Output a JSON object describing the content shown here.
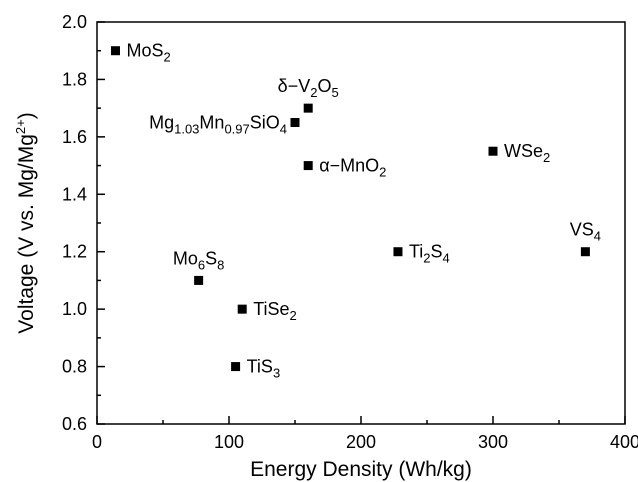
{
  "chart_data": {
    "type": "scatter",
    "xlabel": "Energy Density (Wh/kg)",
    "ylabel_parts": [
      {
        "t": "Voltage (V vs. Mg/Mg"
      },
      {
        "t": "2+",
        "s": "sup"
      },
      {
        "t": ")"
      }
    ],
    "xlim": [
      0,
      400
    ],
    "ylim": [
      0.6,
      2.0
    ],
    "xticks": [
      0,
      100,
      200,
      300,
      400
    ],
    "xticks_minor": [
      50,
      150,
      250,
      350
    ],
    "yticks": [
      0.6,
      0.8,
      1.0,
      1.2,
      1.4,
      1.6,
      1.8,
      2.0
    ],
    "yticks_minor": [
      0.7,
      0.9,
      1.1,
      1.3,
      1.5,
      1.7,
      1.9
    ],
    "xtick_labels": [
      "0",
      "100",
      "200",
      "300",
      "400"
    ],
    "ytick_labels": [
      "0.6",
      "0.8",
      "1.0",
      "1.2",
      "1.4",
      "1.6",
      "1.8",
      "2.0"
    ],
    "grid": false,
    "legend": "none",
    "marker": "square",
    "marker_color": "#000000",
    "points": [
      {
        "name": "MoS2",
        "x": 14,
        "y": 1.9,
        "label": [
          {
            "t": "MoS"
          },
          {
            "t": "2",
            "s": "sub"
          }
        ],
        "pos": "right"
      },
      {
        "name": "delta-V2O5",
        "x": 160,
        "y": 1.7,
        "label": [
          {
            "t": "δ−V"
          },
          {
            "t": "2",
            "s": "sub"
          },
          {
            "t": "O"
          },
          {
            "t": "5",
            "s": "sub"
          }
        ],
        "pos": "above"
      },
      {
        "name": "Mg1.03Mn0.97SiO4",
        "x": 150,
        "y": 1.65,
        "label": [
          {
            "t": "Mg"
          },
          {
            "t": "1.03",
            "s": "sub"
          },
          {
            "t": "Mn"
          },
          {
            "t": "0.97",
            "s": "sub"
          },
          {
            "t": "SiO"
          },
          {
            "t": "4",
            "s": "sub"
          }
        ],
        "pos": "left"
      },
      {
        "name": "alpha-MnO2",
        "x": 160,
        "y": 1.5,
        "label": [
          {
            "t": "α−MnO"
          },
          {
            "t": "2",
            "s": "sub"
          }
        ],
        "pos": "right"
      },
      {
        "name": "WSe2",
        "x": 300,
        "y": 1.55,
        "label": [
          {
            "t": "WSe"
          },
          {
            "t": "2",
            "s": "sub"
          }
        ],
        "pos": "right"
      },
      {
        "name": "VS4",
        "x": 370,
        "y": 1.2,
        "label": [
          {
            "t": "VS"
          },
          {
            "t": "4",
            "s": "sub"
          }
        ],
        "pos": "above"
      },
      {
        "name": "Ti2S4",
        "x": 228,
        "y": 1.2,
        "label": [
          {
            "t": "Ti"
          },
          {
            "t": "2",
            "s": "sub"
          },
          {
            "t": "S"
          },
          {
            "t": "4",
            "s": "sub"
          }
        ],
        "pos": "right"
      },
      {
        "name": "Mo6S8",
        "x": 77,
        "y": 1.1,
        "label": [
          {
            "t": "Mo"
          },
          {
            "t": "6",
            "s": "sub"
          },
          {
            "t": "S"
          },
          {
            "t": "8",
            "s": "sub"
          }
        ],
        "pos": "above"
      },
      {
        "name": "TiSe2",
        "x": 110,
        "y": 1.0,
        "label": [
          {
            "t": "TiSe"
          },
          {
            "t": "2",
            "s": "sub"
          }
        ],
        "pos": "right"
      },
      {
        "name": "TiS3",
        "x": 105,
        "y": 0.8,
        "label": [
          {
            "t": "TiS"
          },
          {
            "t": "3",
            "s": "sub"
          }
        ],
        "pos": "right"
      }
    ]
  }
}
